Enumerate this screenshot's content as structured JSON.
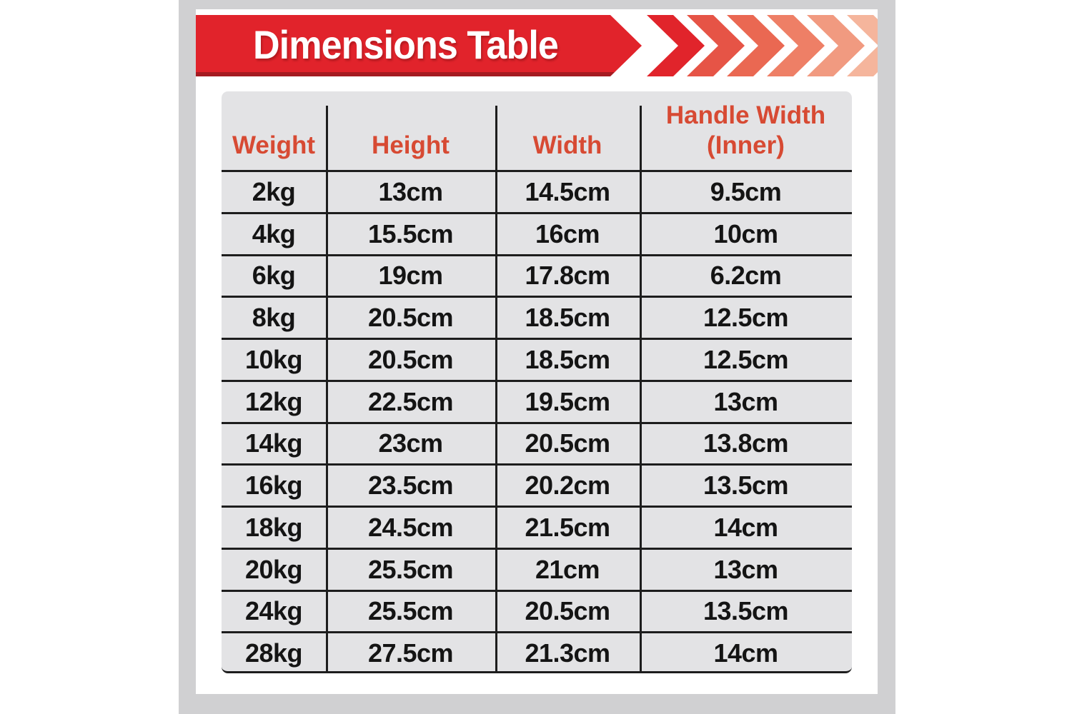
{
  "banner": {
    "title": "Dimensions Table"
  },
  "colors": {
    "banner_red": "#e1232b",
    "banner_red_dark": "#a51b21",
    "header_text": "#d74a33",
    "cell_bg": "#e3e3e5",
    "frame_gray": "#d0d0d2",
    "line_black": "#1d1d1d",
    "cell_text": "#141414",
    "chevron_colors": [
      "#e1242b",
      "#e65446",
      "#ea6852",
      "#ee7f66",
      "#f19a80",
      "#f5b59c"
    ]
  },
  "chart_data": {
    "type": "table",
    "title": "Dimensions Table",
    "columns": [
      "Weight",
      "Height",
      "Width",
      "Handle Width (Inner)"
    ],
    "rows": [
      [
        "2kg",
        "13cm",
        "14.5cm",
        "9.5cm"
      ],
      [
        "4kg",
        "15.5cm",
        "16cm",
        "10cm"
      ],
      [
        "6kg",
        "19cm",
        "17.8cm",
        "6.2cm"
      ],
      [
        "8kg",
        "20.5cm",
        "18.5cm",
        "12.5cm"
      ],
      [
        "10kg",
        "20.5cm",
        "18.5cm",
        "12.5cm"
      ],
      [
        "12kg",
        "22.5cm",
        "19.5cm",
        "13cm"
      ],
      [
        "14kg",
        "23cm",
        "20.5cm",
        "13.8cm"
      ],
      [
        "16kg",
        "23.5cm",
        "20.2cm",
        "13.5cm"
      ],
      [
        "18kg",
        "24.5cm",
        "21.5cm",
        "14cm"
      ],
      [
        "20kg",
        "25.5cm",
        "21cm",
        "13cm"
      ],
      [
        "24kg",
        "25.5cm",
        "20.5cm",
        "13.5cm"
      ],
      [
        "28kg",
        "27.5cm",
        "21.3cm",
        "14cm"
      ]
    ]
  }
}
